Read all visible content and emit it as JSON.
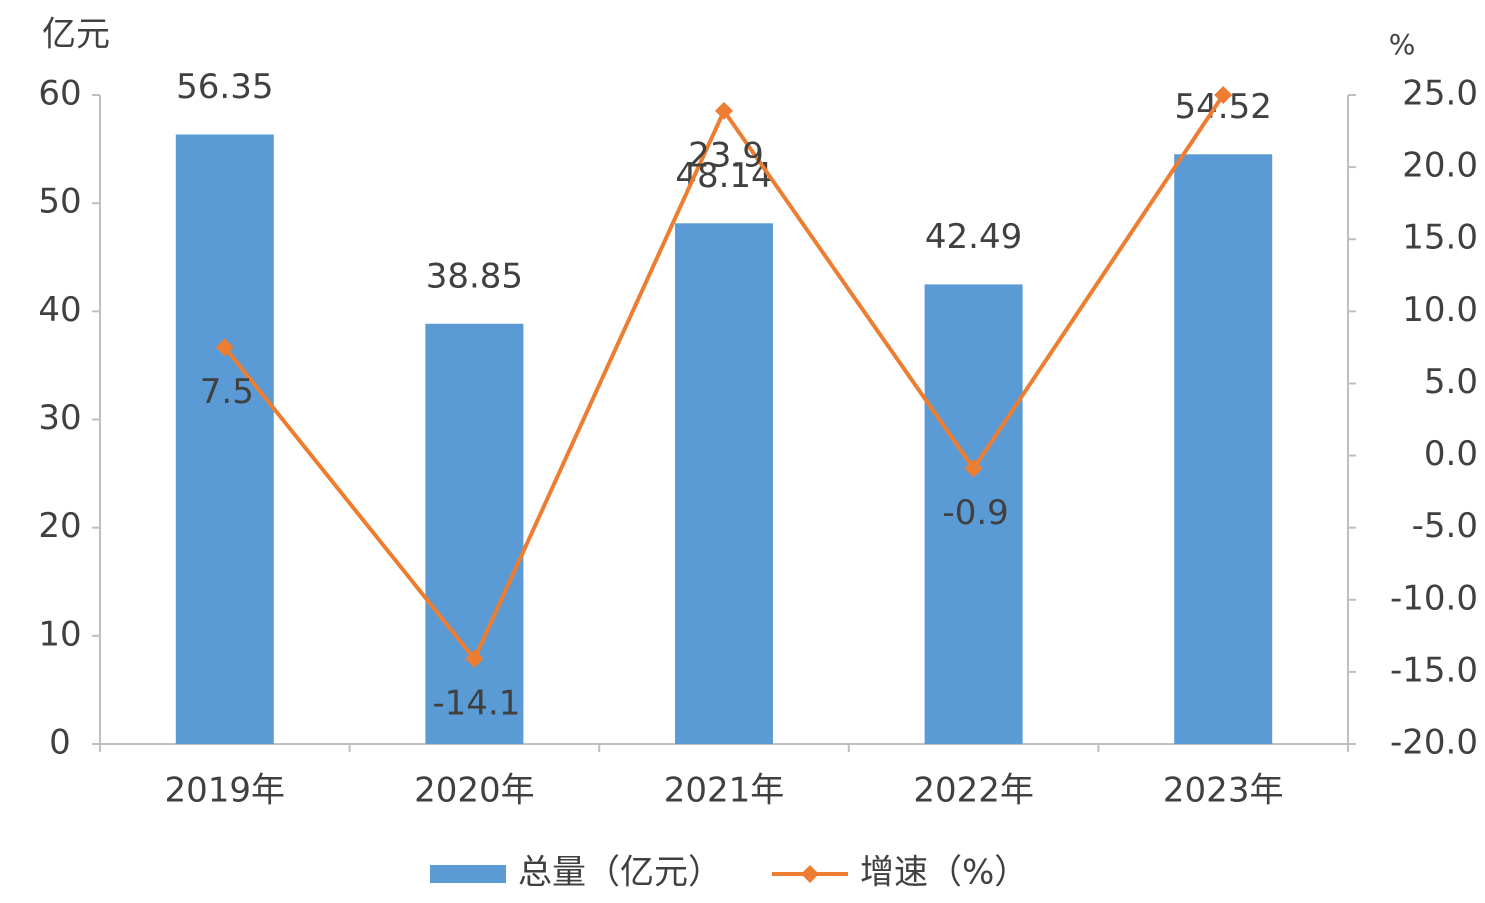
{
  "chart_data": {
    "type": "bar",
    "y_label": "亿元",
    "y2_label": "%",
    "categories": [
      "2019年",
      "2020年",
      "2021年",
      "2022年",
      "2023年"
    ],
    "series": [
      {
        "name": "总量（亿元）",
        "type": "bar",
        "color": "#5b9bd5",
        "values": [
          56.35,
          38.85,
          48.14,
          42.49,
          54.52
        ]
      },
      {
        "name": "增速（%）",
        "type": "line",
        "color": "#ed7d31",
        "axis": "y2",
        "values": [
          7.5,
          -14.1,
          23.9,
          -0.9,
          25.0
        ],
        "value_labels": [
          "7.5",
          "-14.1",
          "23.9",
          "-0.9",
          null
        ]
      }
    ],
    "ylim": [
      0,
      60
    ],
    "yticks": [
      0,
      10,
      20,
      30,
      40,
      50,
      60
    ],
    "y2lim": [
      -20,
      25
    ],
    "y2ticks": [
      {
        "value": -20,
        "label": "-20.0"
      },
      {
        "value": -15,
        "label": "-15.0"
      },
      {
        "value": -10,
        "label": "-10.0"
      },
      {
        "value": -5,
        "label": "-5.0"
      },
      {
        "value": 0,
        "label": "0.0"
      },
      {
        "value": 5,
        "label": "5.0"
      },
      {
        "value": 10,
        "label": "10.0"
      },
      {
        "value": 15,
        "label": "15.0"
      },
      {
        "value": 20,
        "label": "20.0"
      },
      {
        "value": 25,
        "label": "25.0"
      }
    ],
    "grid": false,
    "legend": "bottom"
  }
}
